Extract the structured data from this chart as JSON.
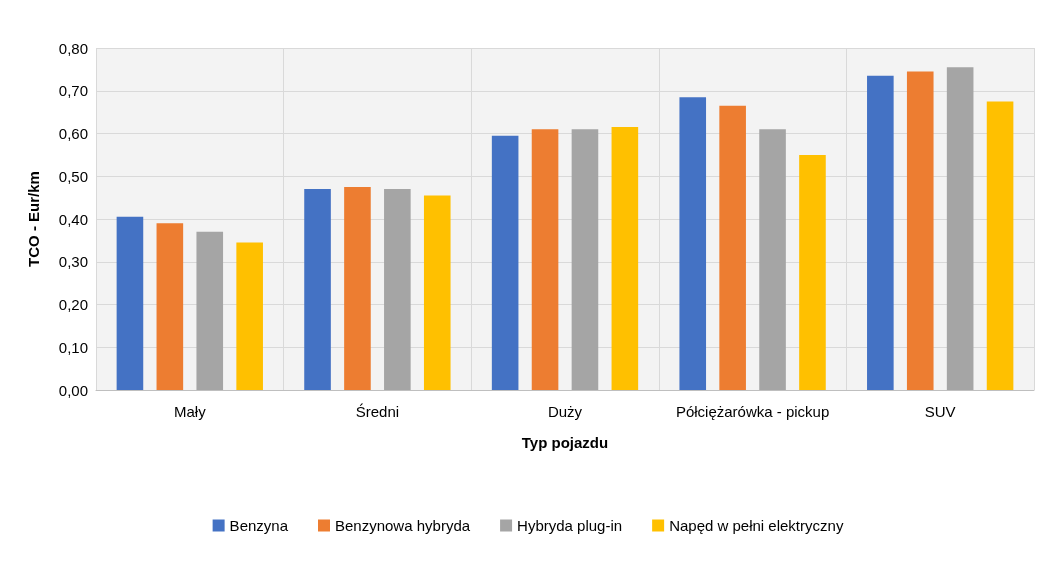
{
  "chart_data": {
    "type": "bar",
    "xlabel": "Typ pojazdu",
    "ylabel": "TCO - Eur/km",
    "categories": [
      "Mały",
      "Średni",
      "Duży",
      "Półciężarówka - pickup",
      "SUV"
    ],
    "series": [
      {
        "name": "Benzyna",
        "color": "#4472c4",
        "values": [
          0.405,
          0.47,
          0.595,
          0.685,
          0.735
        ]
      },
      {
        "name": "Benzynowa hybryda",
        "color": "#ed7d31",
        "values": [
          0.39,
          0.475,
          0.61,
          0.665,
          0.745
        ]
      },
      {
        "name": "Hybryda plug-in",
        "color": "#a5a5a5",
        "values": [
          0.37,
          0.47,
          0.61,
          0.61,
          0.755
        ]
      },
      {
        "name": "Napęd w pełni elektryczny",
        "color": "#ffc000",
        "values": [
          0.345,
          0.455,
          0.615,
          0.55,
          0.675
        ]
      }
    ],
    "ylim": [
      0,
      0.8
    ],
    "yticks": [
      {
        "value": 0,
        "label": "0,00"
      },
      {
        "value": 0.1,
        "label": "0,10"
      },
      {
        "value": 0.2,
        "label": "0,20"
      },
      {
        "value": 0.3,
        "label": "0,30"
      },
      {
        "value": 0.4,
        "label": "0,40"
      },
      {
        "value": 0.5,
        "label": "0,50"
      },
      {
        "value": 0.6,
        "label": "0,60"
      },
      {
        "value": 0.7,
        "label": "0,70"
      },
      {
        "value": 0.8,
        "label": "0,80"
      }
    ],
    "grid": true,
    "legend": "bottom"
  }
}
